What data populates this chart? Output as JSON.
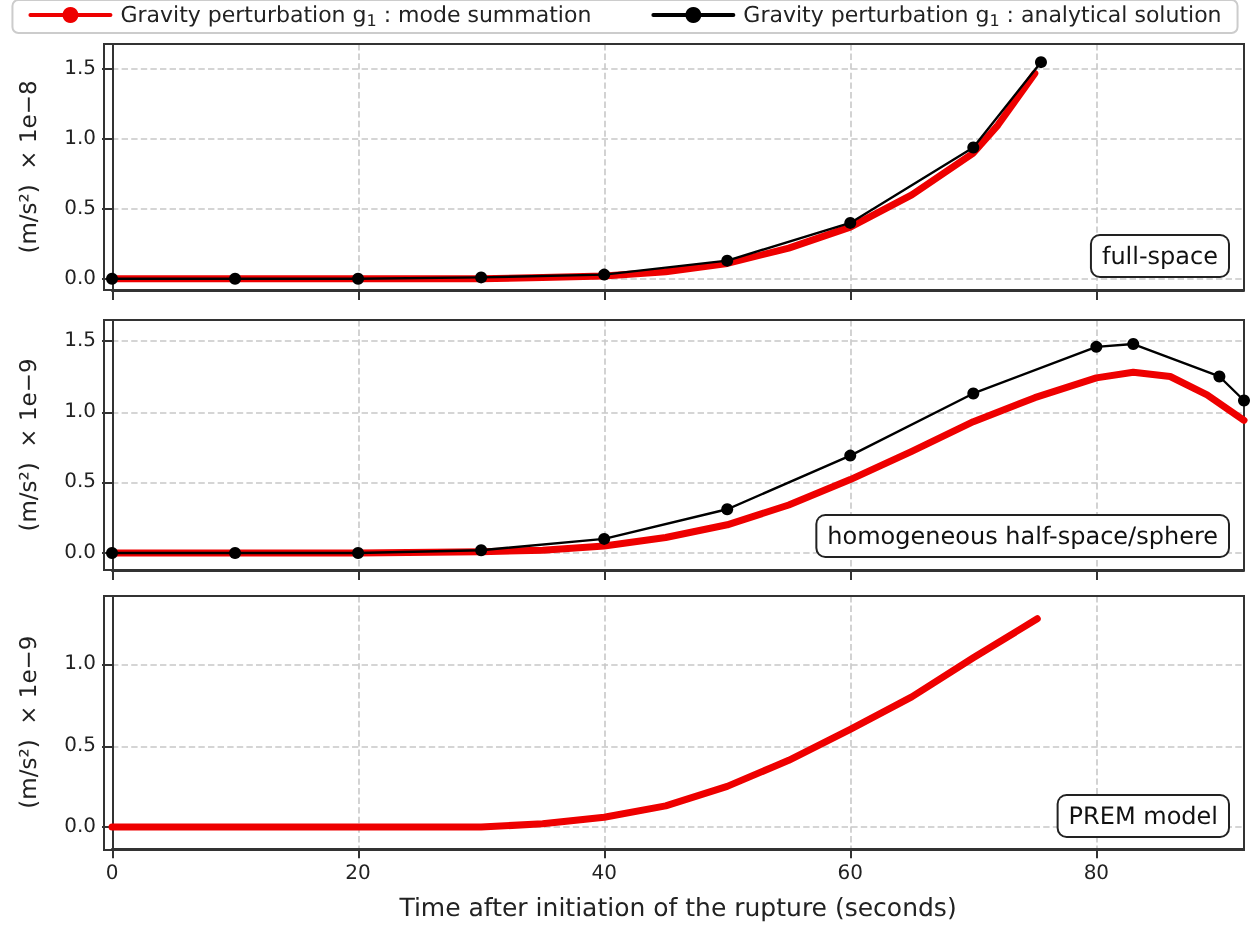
{
  "chart_data": [
    {
      "type": "line",
      "xlim": [
        0,
        92
      ],
      "xticks": [
        0,
        20,
        40,
        60,
        80
      ],
      "ylim": [
        -0.08,
        1.68
      ],
      "yticks": [
        {
          "value": 0,
          "label": "0.0"
        },
        {
          "value": 0.5,
          "label": "0.5"
        },
        {
          "value": 1,
          "label": "1.0"
        },
        {
          "value": 1.5,
          "label": "1.5"
        }
      ],
      "tick_labels": "y",
      "ylabel": "(m/s²)  × 1e−8",
      "grid": true,
      "legend": "top",
      "annotations": [
        "full-space"
      ],
      "series": [
        {
          "name": "Gravity perturbation g$_{1}$ : mode summation",
          "color": "#ee0000",
          "marker": "none",
          "x": [
            0,
            10,
            20,
            30,
            35,
            40,
            45,
            50,
            55,
            60,
            65,
            70,
            72,
            75
          ],
          "values": [
            0,
            0,
            0,
            0,
            0.01,
            0.02,
            0.05,
            0.11,
            0.22,
            0.37,
            0.6,
            0.9,
            1.1,
            1.47
          ]
        },
        {
          "name": "Gravity perturbation g$_{1}$ : analytical solution",
          "color": "#000000",
          "marker": "circle",
          "x": [
            0,
            10,
            20,
            30,
            40,
            50,
            60,
            70,
            75.5
          ],
          "values": [
            0,
            0,
            0,
            0.01,
            0.03,
            0.13,
            0.4,
            0.94,
            1.55
          ]
        }
      ]
    },
    {
      "type": "line",
      "xlim": [
        0,
        92
      ],
      "xticks": [
        0,
        20,
        40,
        60,
        80
      ],
      "ylim": [
        -0.12,
        1.65
      ],
      "yticks": [
        {
          "value": 0,
          "label": "0.0"
        },
        {
          "value": 0.5,
          "label": "0.5"
        },
        {
          "value": 1,
          "label": "1.0"
        },
        {
          "value": 1.5,
          "label": "1.5"
        }
      ],
      "tick_labels": "y",
      "ylabel": "(m/s²)  × 1e−9",
      "grid": true,
      "annotations": [
        "homogeneous half-space/sphere"
      ],
      "series": [
        {
          "color": "#ee0000",
          "marker": "none",
          "x": [
            0,
            10,
            20,
            30,
            35,
            40,
            45,
            50,
            55,
            60,
            65,
            70,
            75,
            80,
            83,
            86,
            89,
            92
          ],
          "values": [
            0,
            0,
            0,
            0.01,
            0.02,
            0.05,
            0.11,
            0.2,
            0.34,
            0.52,
            0.72,
            0.93,
            1.1,
            1.24,
            1.28,
            1.25,
            1.12,
            0.94
          ]
        },
        {
          "color": "#000000",
          "marker": "circle",
          "x": [
            0,
            10,
            20,
            30,
            40,
            50,
            60,
            70,
            80,
            83,
            90,
            92
          ],
          "values": [
            0,
            0,
            0,
            0.02,
            0.1,
            0.31,
            0.69,
            1.13,
            1.46,
            1.48,
            1.25,
            1.08
          ]
        }
      ]
    },
    {
      "type": "line",
      "xlim": [
        0,
        92
      ],
      "xticks": [
        0,
        20,
        40,
        60,
        80
      ],
      "ylim": [
        -0.13,
        1.42
      ],
      "yticks": [
        {
          "value": 0,
          "label": "0.0"
        },
        {
          "value": 0.5,
          "label": "0.5"
        },
        {
          "value": 1,
          "label": "1.0"
        }
      ],
      "xlabel": "Time after initiation of the rupture (seconds)",
      "ylabel": "(m/s²)  × 1e−9",
      "grid": true,
      "annotations": [
        "PREM model"
      ],
      "series": [
        {
          "color": "#ee0000",
          "marker": "none",
          "x": [
            0,
            10,
            20,
            25,
            30,
            35,
            40,
            45,
            50,
            55,
            60,
            65,
            70,
            75.2
          ],
          "values": [
            0,
            0,
            0,
            0,
            0,
            0.02,
            0.06,
            0.13,
            0.25,
            0.41,
            0.6,
            0.8,
            1.04,
            1.28
          ]
        }
      ]
    }
  ]
}
